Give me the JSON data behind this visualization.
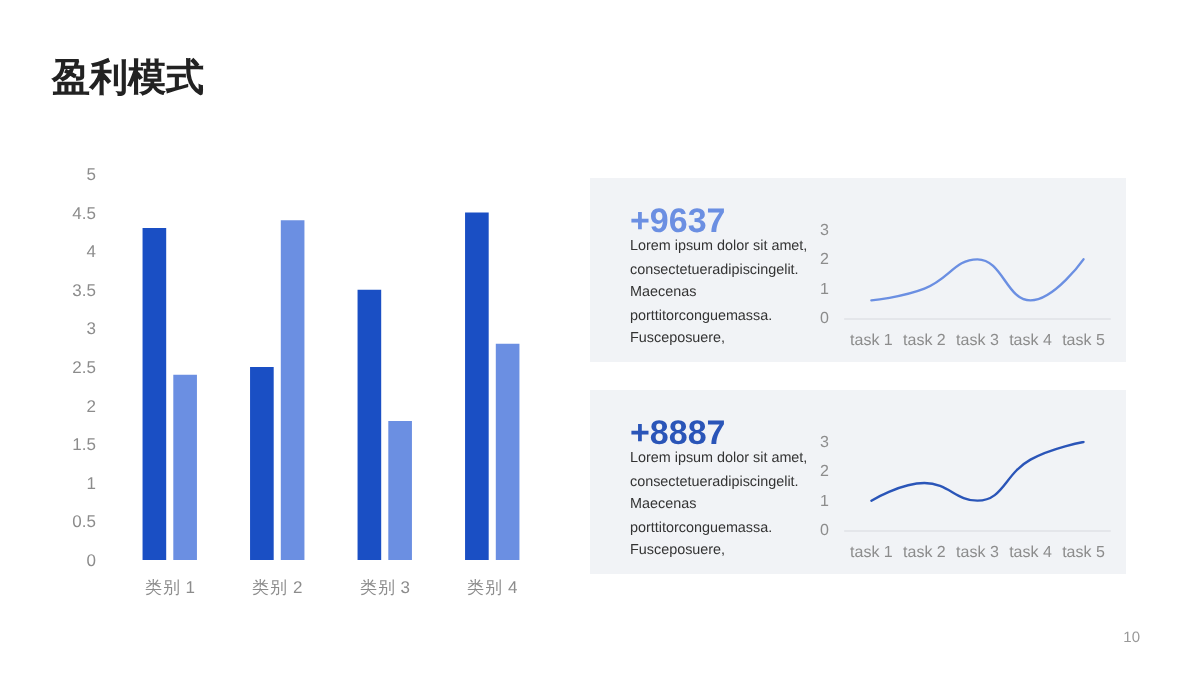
{
  "chart_data": [
    {
      "type": "bar",
      "title": "盈利模式",
      "categories": [
        "类别 1",
        "类别 2",
        "类别 3",
        "类别 4"
      ],
      "series": [
        {
          "color": "#1a4fc4",
          "values": [
            4.3,
            2.5,
            3.5,
            4.5
          ]
        },
        {
          "color": "#6b8fe2",
          "values": [
            2.4,
            4.4,
            1.8,
            2.8
          ]
        }
      ],
      "ylim": [
        0,
        5
      ],
      "yticks": [
        0,
        0.5,
        1,
        1.5,
        2,
        2.5,
        3,
        3.5,
        4,
        4.5,
        5
      ],
      "grid": false,
      "annotations": [
        "10"
      ]
    },
    {
      "type": "line",
      "title": "+9637",
      "categories": [
        "task 1",
        "task 2",
        "task 3",
        "task 4",
        "task 5"
      ],
      "series": [
        {
          "color": "#6b8fe2",
          "values": [
            0.6,
            1.0,
            2.0,
            0.6,
            2.0
          ]
        }
      ],
      "ylim": [
        0,
        3
      ],
      "yticks": [
        0,
        1,
        2,
        3
      ],
      "grid": false,
      "annotations": [
        "Lorem ipsum dolor sit amet,",
        "consectetueradipiscingelit.",
        "Maecenas",
        "porttitorconguemassa.",
        "Fusceposuere,"
      ]
    },
    {
      "type": "line",
      "title": "+8887",
      "categories": [
        "task 1",
        "task 2",
        "task 3",
        "task 4",
        "task 5"
      ],
      "series": [
        {
          "color": "#2a55b8",
          "values": [
            1.0,
            1.6,
            1.0,
            2.4,
            3.0
          ]
        }
      ],
      "ylim": [
        0,
        3
      ],
      "yticks": [
        0,
        1,
        2,
        3
      ],
      "grid": false,
      "annotations": [
        "Lorem ipsum dolor sit amet,",
        "consectetueradipiscingelit.",
        "Maecenas",
        "porttitorconguemassa.",
        "Fusceposuere,"
      ]
    }
  ]
}
